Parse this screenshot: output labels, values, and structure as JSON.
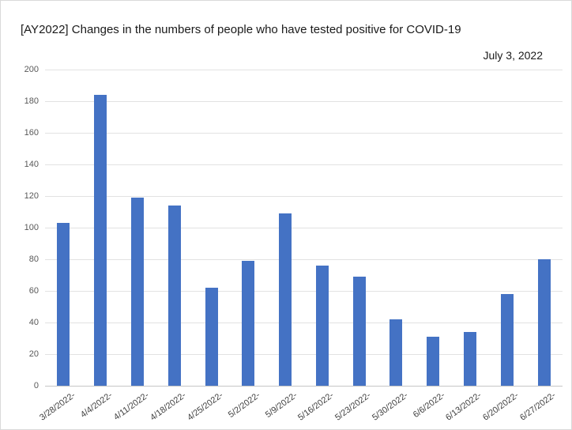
{
  "chart_data": {
    "type": "bar",
    "title": "[AY2022] Changes in the numbers of people who have tested positive for COVID-19",
    "subtitle": "July 3, 2022",
    "categories": [
      "3/28/2022-",
      "4/4/2022-",
      "4/11/2022-",
      "4/18/2022-",
      "4/25/2022-",
      "5/2/2022-",
      "5/9/2022-",
      "5/16/2022-",
      "5/23/2022-",
      "5/30/2022-",
      "6/6/2022-",
      "6/13/2022-",
      "6/20/2022-",
      "6/27/2022-"
    ],
    "values": [
      103,
      184,
      119,
      114,
      62,
      79,
      109,
      76,
      69,
      42,
      31,
      34,
      58,
      80
    ],
    "xlabel": "",
    "ylabel": "",
    "ylim": [
      0,
      200
    ],
    "yticks": [
      0,
      20,
      40,
      60,
      80,
      100,
      120,
      140,
      160,
      180,
      200
    ],
    "grid": true,
    "legend": "none",
    "colors": {
      "bar": "#4472C4",
      "gridline": "#E2E2E2",
      "axis_line": "#C6C6C6",
      "y_tick_text": "#595959",
      "title_text": "#1A1A1A"
    }
  }
}
